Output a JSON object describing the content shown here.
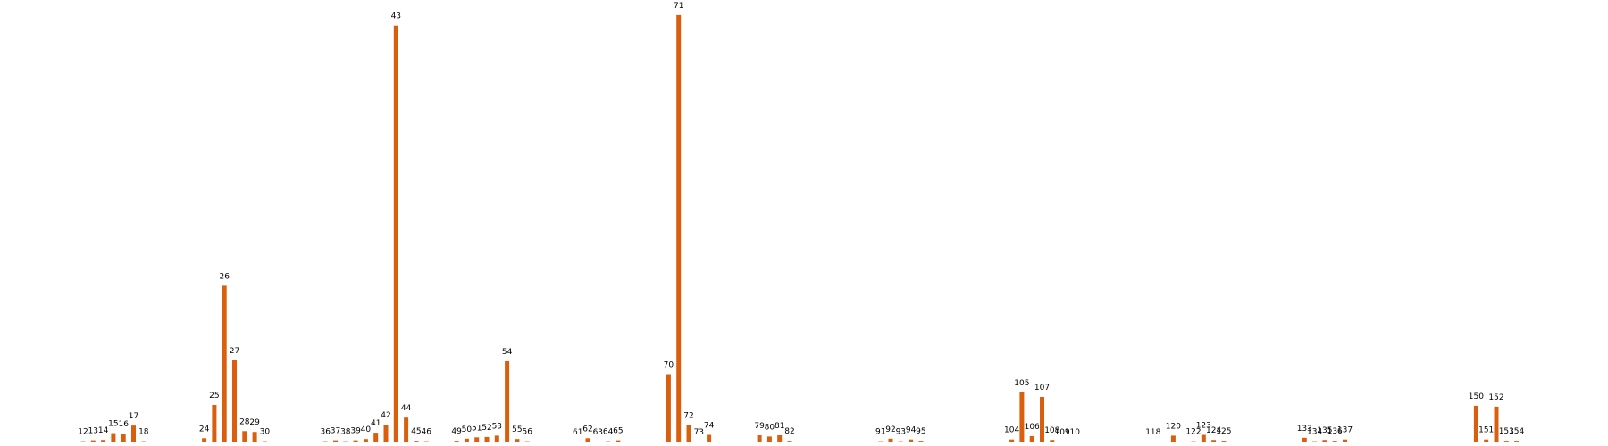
{
  "chart_data": {
    "type": "bar",
    "grid": false,
    "axes_visible": false,
    "bar_color": "#d95f0e",
    "ylim": [
      0,
      100
    ],
    "x": [
      12,
      13,
      14,
      15,
      16,
      17,
      18,
      24,
      25,
      26,
      27,
      28,
      29,
      30,
      36,
      37,
      38,
      39,
      40,
      41,
      42,
      43,
      44,
      45,
      46,
      49,
      50,
      51,
      52,
      53,
      54,
      55,
      56,
      61,
      62,
      63,
      64,
      65,
      70,
      71,
      72,
      73,
      74,
      79,
      80,
      81,
      82,
      91,
      92,
      93,
      94,
      95,
      104,
      105,
      106,
      107,
      108,
      109,
      110,
      118,
      120,
      122,
      123,
      124,
      125,
      133,
      134,
      135,
      136,
      137,
      150,
      151,
      152,
      153,
      154
    ],
    "values": [
      0.3,
      0.5,
      0.6,
      2.2,
      2.1,
      4.0,
      0.3,
      1.0,
      8.9,
      37.2,
      19.5,
      2.7,
      2.5,
      0.3,
      0.3,
      0.5,
      0.3,
      0.5,
      0.8,
      2.3,
      4.2,
      99.0,
      5.9,
      0.4,
      0.3,
      0.4,
      0.9,
      1.2,
      1.3,
      1.6,
      19.3,
      0.8,
      0.3,
      0.2,
      1.0,
      0.2,
      0.3,
      0.5,
      16.2,
      101.5,
      4.1,
      0.2,
      1.8,
      1.7,
      1.4,
      1.7,
      0.4,
      0.3,
      0.9,
      0.3,
      0.7,
      0.4,
      0.7,
      11.9,
      1.5,
      10.8,
      0.6,
      0.2,
      0.2,
      0.2,
      1.6,
      0.3,
      1.8,
      0.6,
      0.4,
      1.1,
      0.3,
      0.6,
      0.4,
      0.7,
      8.7,
      0.7,
      8.5,
      0.4,
      0.4
    ]
  }
}
